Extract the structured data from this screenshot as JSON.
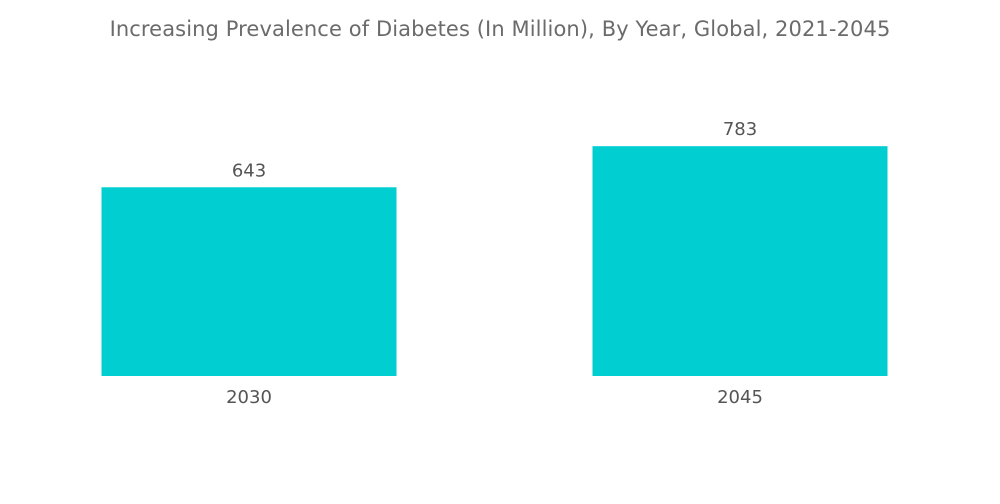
{
  "chart_data": {
    "type": "bar",
    "title": "Increasing Prevalence of Diabetes (In Million), By Year, Global, 2021-2045",
    "categories": [
      "2030",
      "2045"
    ],
    "values": [
      643,
      783
    ],
    "value_labels": [
      "643",
      "783"
    ],
    "xlabel": "",
    "ylabel": "",
    "ylim": [
      0,
      1000
    ],
    "grid": false,
    "legend": "none",
    "bar_color": "#00CED1"
  }
}
